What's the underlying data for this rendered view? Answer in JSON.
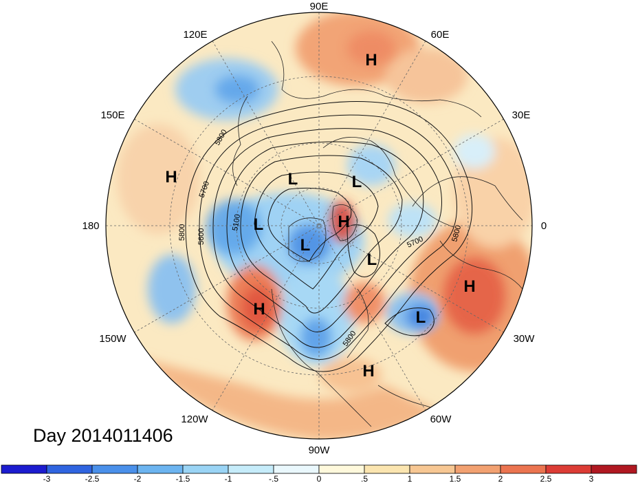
{
  "title": "Day 2014011406",
  "longitude_labels": {
    "lon_90e": "90E",
    "lon_120e": "120E",
    "lon_60e": "60E",
    "lon_150e": "150E",
    "lon_30e": "30E",
    "lon_180": "180",
    "lon_0": "0",
    "lon_150w": "150W",
    "lon_30w": "30W",
    "lon_120w": "120W",
    "lon_60w": "60W",
    "lon_90w": "90W"
  },
  "pressure_centers": {
    "h_asia": "H",
    "h_pacific": "H",
    "h_arctic": "H",
    "h_west_na": "H",
    "h_atlantic": "H",
    "h_caribbean": "H",
    "l_siberia": "L",
    "l_kara": "L",
    "l_east_siberia": "L",
    "l_canada": "L",
    "l_greenland": "L",
    "l_atlantic": "L"
  },
  "contour_labels": {
    "c5800_nw": "5800",
    "c5700_nw": "5700",
    "c5100": "5100",
    "c5600": "5600",
    "c5800_w": "5800",
    "c5700_e": "5700",
    "c5800_e": "5800",
    "c5800_s": "5800"
  },
  "colorbar": {
    "colors": [
      "#1c1ccf",
      "#2f64e0",
      "#4a90ea",
      "#6cb4f0",
      "#9ad4f5",
      "#c6ecfa",
      "#eaf8fd",
      "#fff9dc",
      "#fbe5b0",
      "#f7c793",
      "#f2a171",
      "#eb7450",
      "#dc3c35",
      "#b01821"
    ],
    "ticks": [
      "-3",
      "-2.5",
      "-2",
      "-1.5",
      "-1",
      "-.5",
      "0",
      ".5",
      "1",
      "1.5",
      "2",
      "2.5",
      "3"
    ]
  }
}
